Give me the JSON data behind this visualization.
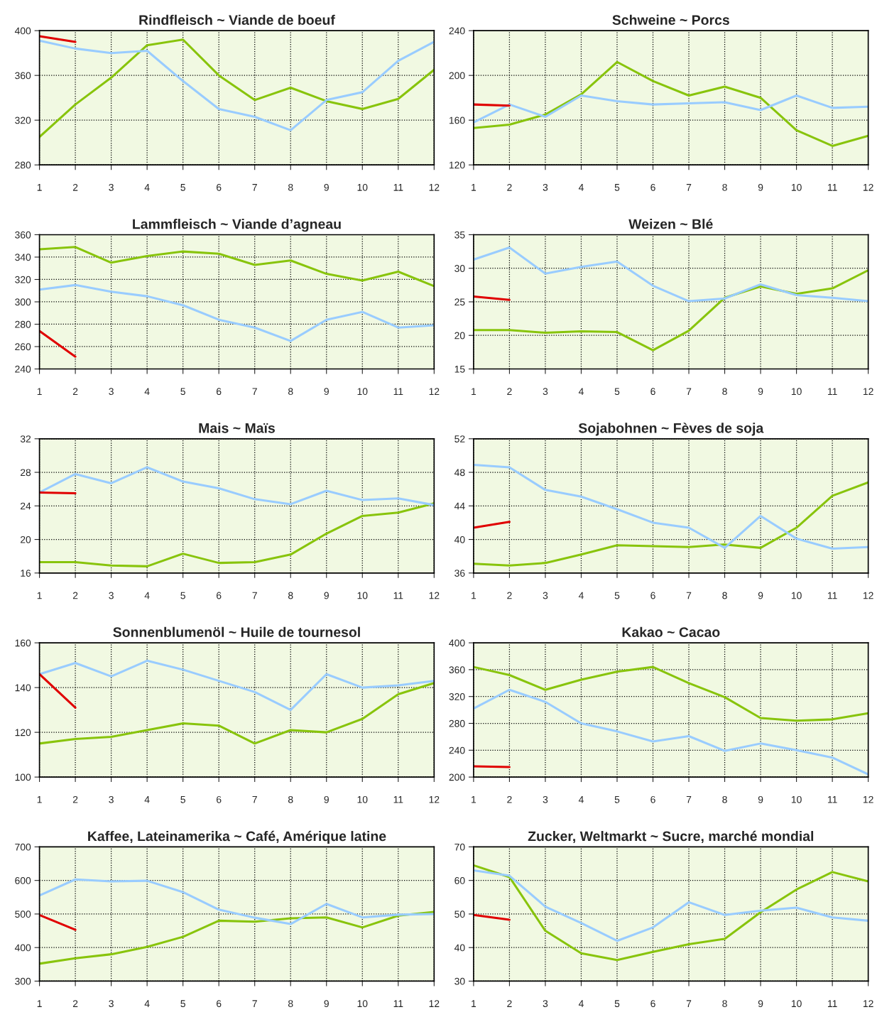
{
  "chart_data": [
    {
      "type": "line",
      "title": "Rindfleisch ~ Viande de boeuf",
      "x": [
        1,
        2,
        3,
        4,
        5,
        6,
        7,
        8,
        9,
        10,
        11,
        12
      ],
      "xlim": [
        1,
        12
      ],
      "xticks": [
        1,
        2,
        3,
        4,
        5,
        6,
        7,
        8,
        9,
        10,
        11,
        12
      ],
      "ylim": [
        280,
        400
      ],
      "yticks": [
        280,
        320,
        360,
        400
      ],
      "grid": true,
      "series": [
        {
          "color": "#88c40c",
          "values": [
            305,
            334,
            358,
            387,
            392,
            360,
            338,
            349,
            337,
            330,
            339,
            365
          ]
        },
        {
          "color": "#99ccff",
          "values": [
            391,
            384,
            380,
            382,
            355,
            330,
            323,
            311,
            338,
            345,
            373,
            390
          ]
        },
        {
          "color": "#e00000",
          "values": [
            395,
            390,
            null,
            null,
            null,
            null,
            null,
            null,
            null,
            null,
            null,
            null
          ]
        }
      ]
    },
    {
      "type": "line",
      "title": "Schweine ~ Porcs",
      "x": [
        1,
        2,
        3,
        4,
        5,
        6,
        7,
        8,
        9,
        10,
        11,
        12
      ],
      "xlim": [
        1,
        12
      ],
      "xticks": [
        1,
        2,
        3,
        4,
        5,
        6,
        7,
        8,
        9,
        10,
        11,
        12
      ],
      "ylim": [
        120,
        240
      ],
      "yticks": [
        120,
        160,
        200,
        240
      ],
      "grid": true,
      "series": [
        {
          "color": "#88c40c",
          "values": [
            153,
            156,
            165,
            183,
            212,
            195,
            182,
            190,
            180,
            151,
            137,
            146
          ]
        },
        {
          "color": "#99ccff",
          "values": [
            158,
            174,
            163,
            182,
            177,
            174,
            175,
            176,
            169,
            182,
            171,
            172
          ]
        },
        {
          "color": "#e00000",
          "values": [
            174,
            173,
            null,
            null,
            null,
            null,
            null,
            null,
            null,
            null,
            null,
            null
          ]
        }
      ]
    },
    {
      "type": "line",
      "title": "Lammfleisch ~ Viande d’agneau",
      "x": [
        1,
        2,
        3,
        4,
        5,
        6,
        7,
        8,
        9,
        10,
        11,
        12
      ],
      "xlim": [
        1,
        12
      ],
      "xticks": [
        1,
        2,
        3,
        4,
        5,
        6,
        7,
        8,
        9,
        10,
        11,
        12
      ],
      "ylim": [
        240,
        360
      ],
      "yticks": [
        240,
        260,
        280,
        300,
        320,
        340,
        360
      ],
      "grid": true,
      "series": [
        {
          "color": "#88c40c",
          "values": [
            347,
            349,
            335,
            341,
            345,
            343,
            333,
            337,
            325,
            319,
            327,
            314
          ]
        },
        {
          "color": "#99ccff",
          "values": [
            311,
            315,
            309,
            305,
            297,
            284,
            277,
            265,
            284,
            291,
            277,
            279
          ]
        },
        {
          "color": "#e00000",
          "values": [
            274,
            251,
            null,
            null,
            null,
            null,
            null,
            null,
            null,
            null,
            null,
            null
          ]
        }
      ]
    },
    {
      "type": "line",
      "title": "Weizen ~ Blé",
      "x": [
        1,
        2,
        3,
        4,
        5,
        6,
        7,
        8,
        9,
        10,
        11,
        12
      ],
      "xlim": [
        1,
        12
      ],
      "xticks": [
        1,
        2,
        3,
        4,
        5,
        6,
        7,
        8,
        9,
        10,
        11,
        12
      ],
      "ylim": [
        15,
        35
      ],
      "yticks": [
        15,
        20,
        25,
        30,
        35
      ],
      "grid": true,
      "series": [
        {
          "color": "#88c40c",
          "values": [
            20.8,
            20.8,
            20.4,
            20.6,
            20.5,
            17.8,
            20.7,
            25.6,
            27.3,
            26.2,
            27.0,
            29.7
          ]
        },
        {
          "color": "#99ccff",
          "values": [
            31.3,
            33.1,
            29.2,
            30.2,
            31.0,
            27.4,
            25.1,
            25.5,
            27.6,
            26.0,
            25.6,
            25.1
          ]
        },
        {
          "color": "#e00000",
          "values": [
            25.8,
            25.3,
            null,
            null,
            null,
            null,
            null,
            null,
            null,
            null,
            null,
            null
          ]
        }
      ]
    },
    {
      "type": "line",
      "title": "Mais ~ Maïs",
      "x": [
        1,
        2,
        3,
        4,
        5,
        6,
        7,
        8,
        9,
        10,
        11,
        12
      ],
      "xlim": [
        1,
        12
      ],
      "xticks": [
        1,
        2,
        3,
        4,
        5,
        6,
        7,
        8,
        9,
        10,
        11,
        12
      ],
      "ylim": [
        16,
        32
      ],
      "yticks": [
        16,
        20,
        24,
        28,
        32
      ],
      "grid": true,
      "series": [
        {
          "color": "#88c40c",
          "values": [
            17.3,
            17.3,
            16.9,
            16.8,
            18.3,
            17.2,
            17.3,
            18.2,
            20.7,
            22.8,
            23.2,
            24.3
          ]
        },
        {
          "color": "#99ccff",
          "values": [
            25.6,
            27.8,
            26.7,
            28.6,
            26.9,
            26.1,
            24.8,
            24.2,
            25.8,
            24.7,
            24.9,
            24.1
          ]
        },
        {
          "color": "#e00000",
          "values": [
            25.6,
            25.5,
            null,
            null,
            null,
            null,
            null,
            null,
            null,
            null,
            null,
            null
          ]
        }
      ]
    },
    {
      "type": "line",
      "title": "Sojabohnen ~ Fèves de soja",
      "x": [
        1,
        2,
        3,
        4,
        5,
        6,
        7,
        8,
        9,
        10,
        11,
        12
      ],
      "xlim": [
        1,
        12
      ],
      "xticks": [
        1,
        2,
        3,
        4,
        5,
        6,
        7,
        8,
        9,
        10,
        11,
        12
      ],
      "ylim": [
        36,
        52
      ],
      "yticks": [
        36,
        40,
        44,
        48,
        52
      ],
      "grid": true,
      "series": [
        {
          "color": "#88c40c",
          "values": [
            37.1,
            36.9,
            37.2,
            38.2,
            39.3,
            39.2,
            39.1,
            39.4,
            39.0,
            41.4,
            45.2,
            46.8
          ]
        },
        {
          "color": "#99ccff",
          "values": [
            48.9,
            48.6,
            45.9,
            45.1,
            43.6,
            42.0,
            41.4,
            39.0,
            42.8,
            40.1,
            38.9,
            39.1
          ]
        },
        {
          "color": "#e00000",
          "values": [
            41.4,
            42.1,
            null,
            null,
            null,
            null,
            null,
            null,
            null,
            null,
            null,
            null
          ]
        }
      ]
    },
    {
      "type": "line",
      "title": "Sonnenblumenöl ~ Huile de tournesol",
      "x": [
        1,
        2,
        3,
        4,
        5,
        6,
        7,
        8,
        9,
        10,
        11,
        12
      ],
      "xlim": [
        1,
        12
      ],
      "xticks": [
        1,
        2,
        3,
        4,
        5,
        6,
        7,
        8,
        9,
        10,
        11,
        12
      ],
      "ylim": [
        100,
        160
      ],
      "yticks": [
        100,
        120,
        140,
        160
      ],
      "grid": true,
      "series": [
        {
          "color": "#88c40c",
          "values": [
            115,
            117,
            118,
            121,
            124,
            123,
            115,
            121,
            120,
            126,
            137,
            142
          ]
        },
        {
          "color": "#99ccff",
          "values": [
            146,
            151,
            145,
            152,
            148,
            143,
            138,
            130,
            146,
            140,
            141,
            143
          ]
        },
        {
          "color": "#e00000",
          "values": [
            146,
            131,
            null,
            null,
            null,
            null,
            null,
            null,
            null,
            null,
            null,
            null
          ]
        }
      ]
    },
    {
      "type": "line",
      "title": "Kakao ~ Cacao",
      "x": [
        1,
        2,
        3,
        4,
        5,
        6,
        7,
        8,
        9,
        10,
        11,
        12
      ],
      "xlim": [
        1,
        12
      ],
      "xticks": [
        1,
        2,
        3,
        4,
        5,
        6,
        7,
        8,
        9,
        10,
        11,
        12
      ],
      "ylim": [
        200,
        400
      ],
      "yticks": [
        200,
        240,
        280,
        320,
        360,
        400
      ],
      "grid": true,
      "series": [
        {
          "color": "#88c40c",
          "values": [
            364,
            352,
            330,
            345,
            357,
            364,
            340,
            319,
            288,
            284,
            286,
            295
          ]
        },
        {
          "color": "#99ccff",
          "values": [
            302,
            330,
            312,
            280,
            268,
            253,
            261,
            239,
            250,
            240,
            229,
            204
          ]
        },
        {
          "color": "#e00000",
          "values": [
            216,
            215,
            null,
            null,
            null,
            null,
            null,
            null,
            null,
            null,
            null,
            null
          ]
        }
      ]
    },
    {
      "type": "line",
      "title": "Kaffee, Lateinamerika ~ Café, Amérique latine",
      "x": [
        1,
        2,
        3,
        4,
        5,
        6,
        7,
        8,
        9,
        10,
        11,
        12
      ],
      "xlim": [
        1,
        12
      ],
      "xticks": [
        1,
        2,
        3,
        4,
        5,
        6,
        7,
        8,
        9,
        10,
        11,
        12
      ],
      "ylim": [
        300,
        700
      ],
      "yticks": [
        300,
        400,
        500,
        600,
        700
      ],
      "grid": true,
      "series": [
        {
          "color": "#88c40c",
          "values": [
            352,
            368,
            380,
            402,
            432,
            480,
            477,
            487,
            490,
            460,
            495,
            506
          ]
        },
        {
          "color": "#99ccff",
          "values": [
            555,
            603,
            597,
            599,
            565,
            513,
            489,
            470,
            530,
            490,
            498,
            500
          ]
        },
        {
          "color": "#e00000",
          "values": [
            497,
            453,
            null,
            null,
            null,
            null,
            null,
            null,
            null,
            null,
            null,
            null
          ]
        }
      ]
    },
    {
      "type": "line",
      "title": "Zucker, Weltmarkt ~ Sucre, marché mondial",
      "x": [
        1,
        2,
        3,
        4,
        5,
        6,
        7,
        8,
        9,
        10,
        11,
        12
      ],
      "xlim": [
        1,
        12
      ],
      "xticks": [
        1,
        2,
        3,
        4,
        5,
        6,
        7,
        8,
        9,
        10,
        11,
        12
      ],
      "ylim": [
        30,
        70
      ],
      "yticks": [
        30,
        40,
        50,
        60,
        70
      ],
      "grid": true,
      "series": [
        {
          "color": "#88c40c",
          "values": [
            64.5,
            61,
            45,
            38.3,
            36.3,
            38.7,
            41,
            42.6,
            50.5,
            57.3,
            62.5,
            59.7
          ]
        },
        {
          "color": "#99ccff",
          "values": [
            63,
            61.4,
            52.2,
            47.3,
            42,
            46,
            53.5,
            49.7,
            51,
            51.9,
            49,
            48
          ]
        },
        {
          "color": "#e00000",
          "values": [
            49.7,
            48.3,
            null,
            null,
            null,
            null,
            null,
            null,
            null,
            null,
            null,
            null
          ]
        }
      ]
    }
  ]
}
